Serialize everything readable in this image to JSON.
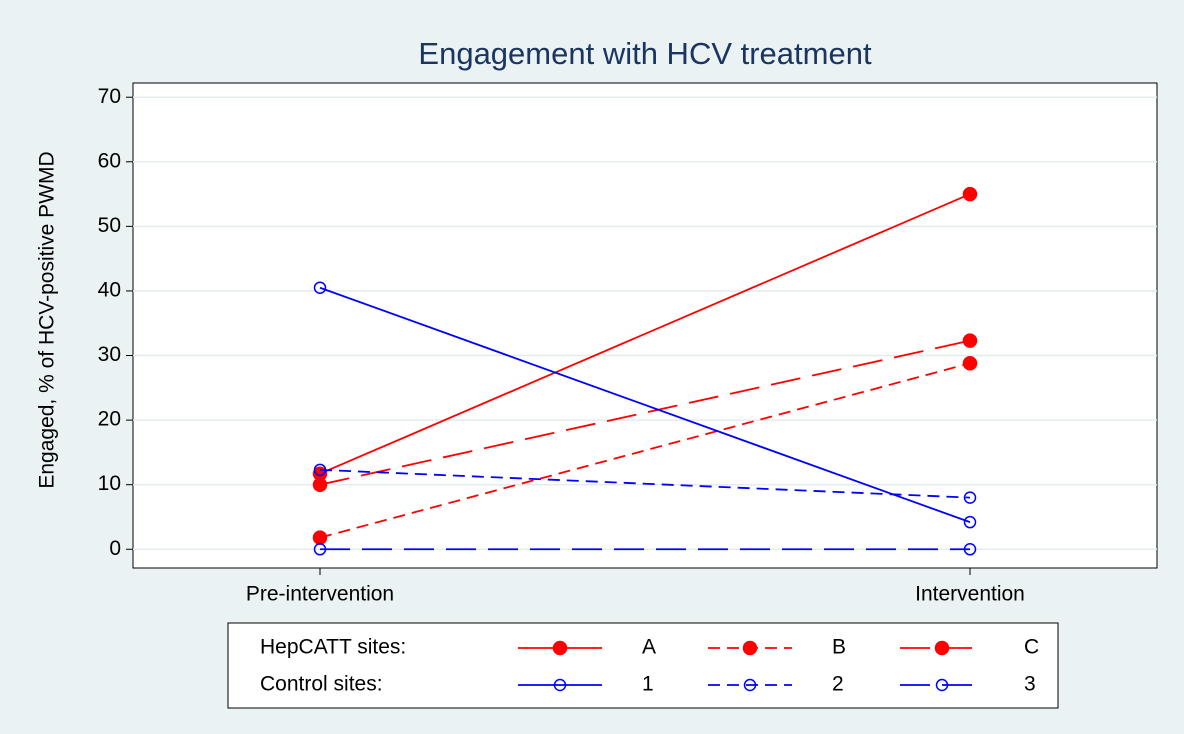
{
  "chart_data": {
    "type": "line",
    "title": "Engagement with HCV treatment",
    "y_label": "Engaged, % of HCV-positive PWMD",
    "categories": [
      "Pre-intervention",
      "Intervention"
    ],
    "ylim": [
      -2.9,
      72.2
    ],
    "yticks": [
      0,
      10,
      20,
      30,
      40,
      50,
      60,
      70
    ],
    "grid": true,
    "legend_rows": [
      "HepCATT sites:",
      "Control sites:"
    ],
    "series": [
      {
        "name": "A",
        "color": "#ff0000",
        "dash": "solid",
        "marker": "filled",
        "row": 0,
        "values": [
          11.7,
          55
        ]
      },
      {
        "name": "B",
        "color": "#ff0000",
        "dash": "short",
        "marker": "filled",
        "row": 0,
        "values": [
          1.8,
          28.8
        ]
      },
      {
        "name": "C",
        "color": "#ff0000",
        "dash": "long",
        "marker": "filled",
        "row": 0,
        "values": [
          10,
          32.3
        ]
      },
      {
        "name": "1",
        "color": "#0000ff",
        "dash": "solid",
        "marker": "hollow",
        "row": 1,
        "values": [
          40.5,
          4.2
        ]
      },
      {
        "name": "2",
        "color": "#0000ff",
        "dash": "short",
        "marker": "hollow",
        "row": 1,
        "values": [
          12.3,
          8
        ]
      },
      {
        "name": "3",
        "color": "#0000ff",
        "dash": "long",
        "marker": "hollow",
        "row": 1,
        "values": [
          0,
          0
        ]
      }
    ]
  }
}
